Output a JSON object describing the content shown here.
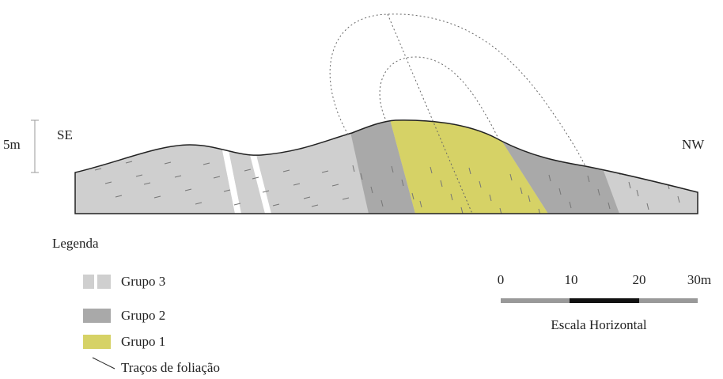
{
  "labels": {
    "vertical_scale": "5m",
    "left_end": "SE",
    "right_end": "NW"
  },
  "legend": {
    "title": "Legenda",
    "items": [
      "Grupo 3",
      "Grupo 2",
      "Grupo 1",
      "Traços de foliação"
    ]
  },
  "scale_bar": {
    "ticks": [
      "0",
      "10",
      "20",
      "30m"
    ],
    "title": "Escala Horizontal"
  }
}
